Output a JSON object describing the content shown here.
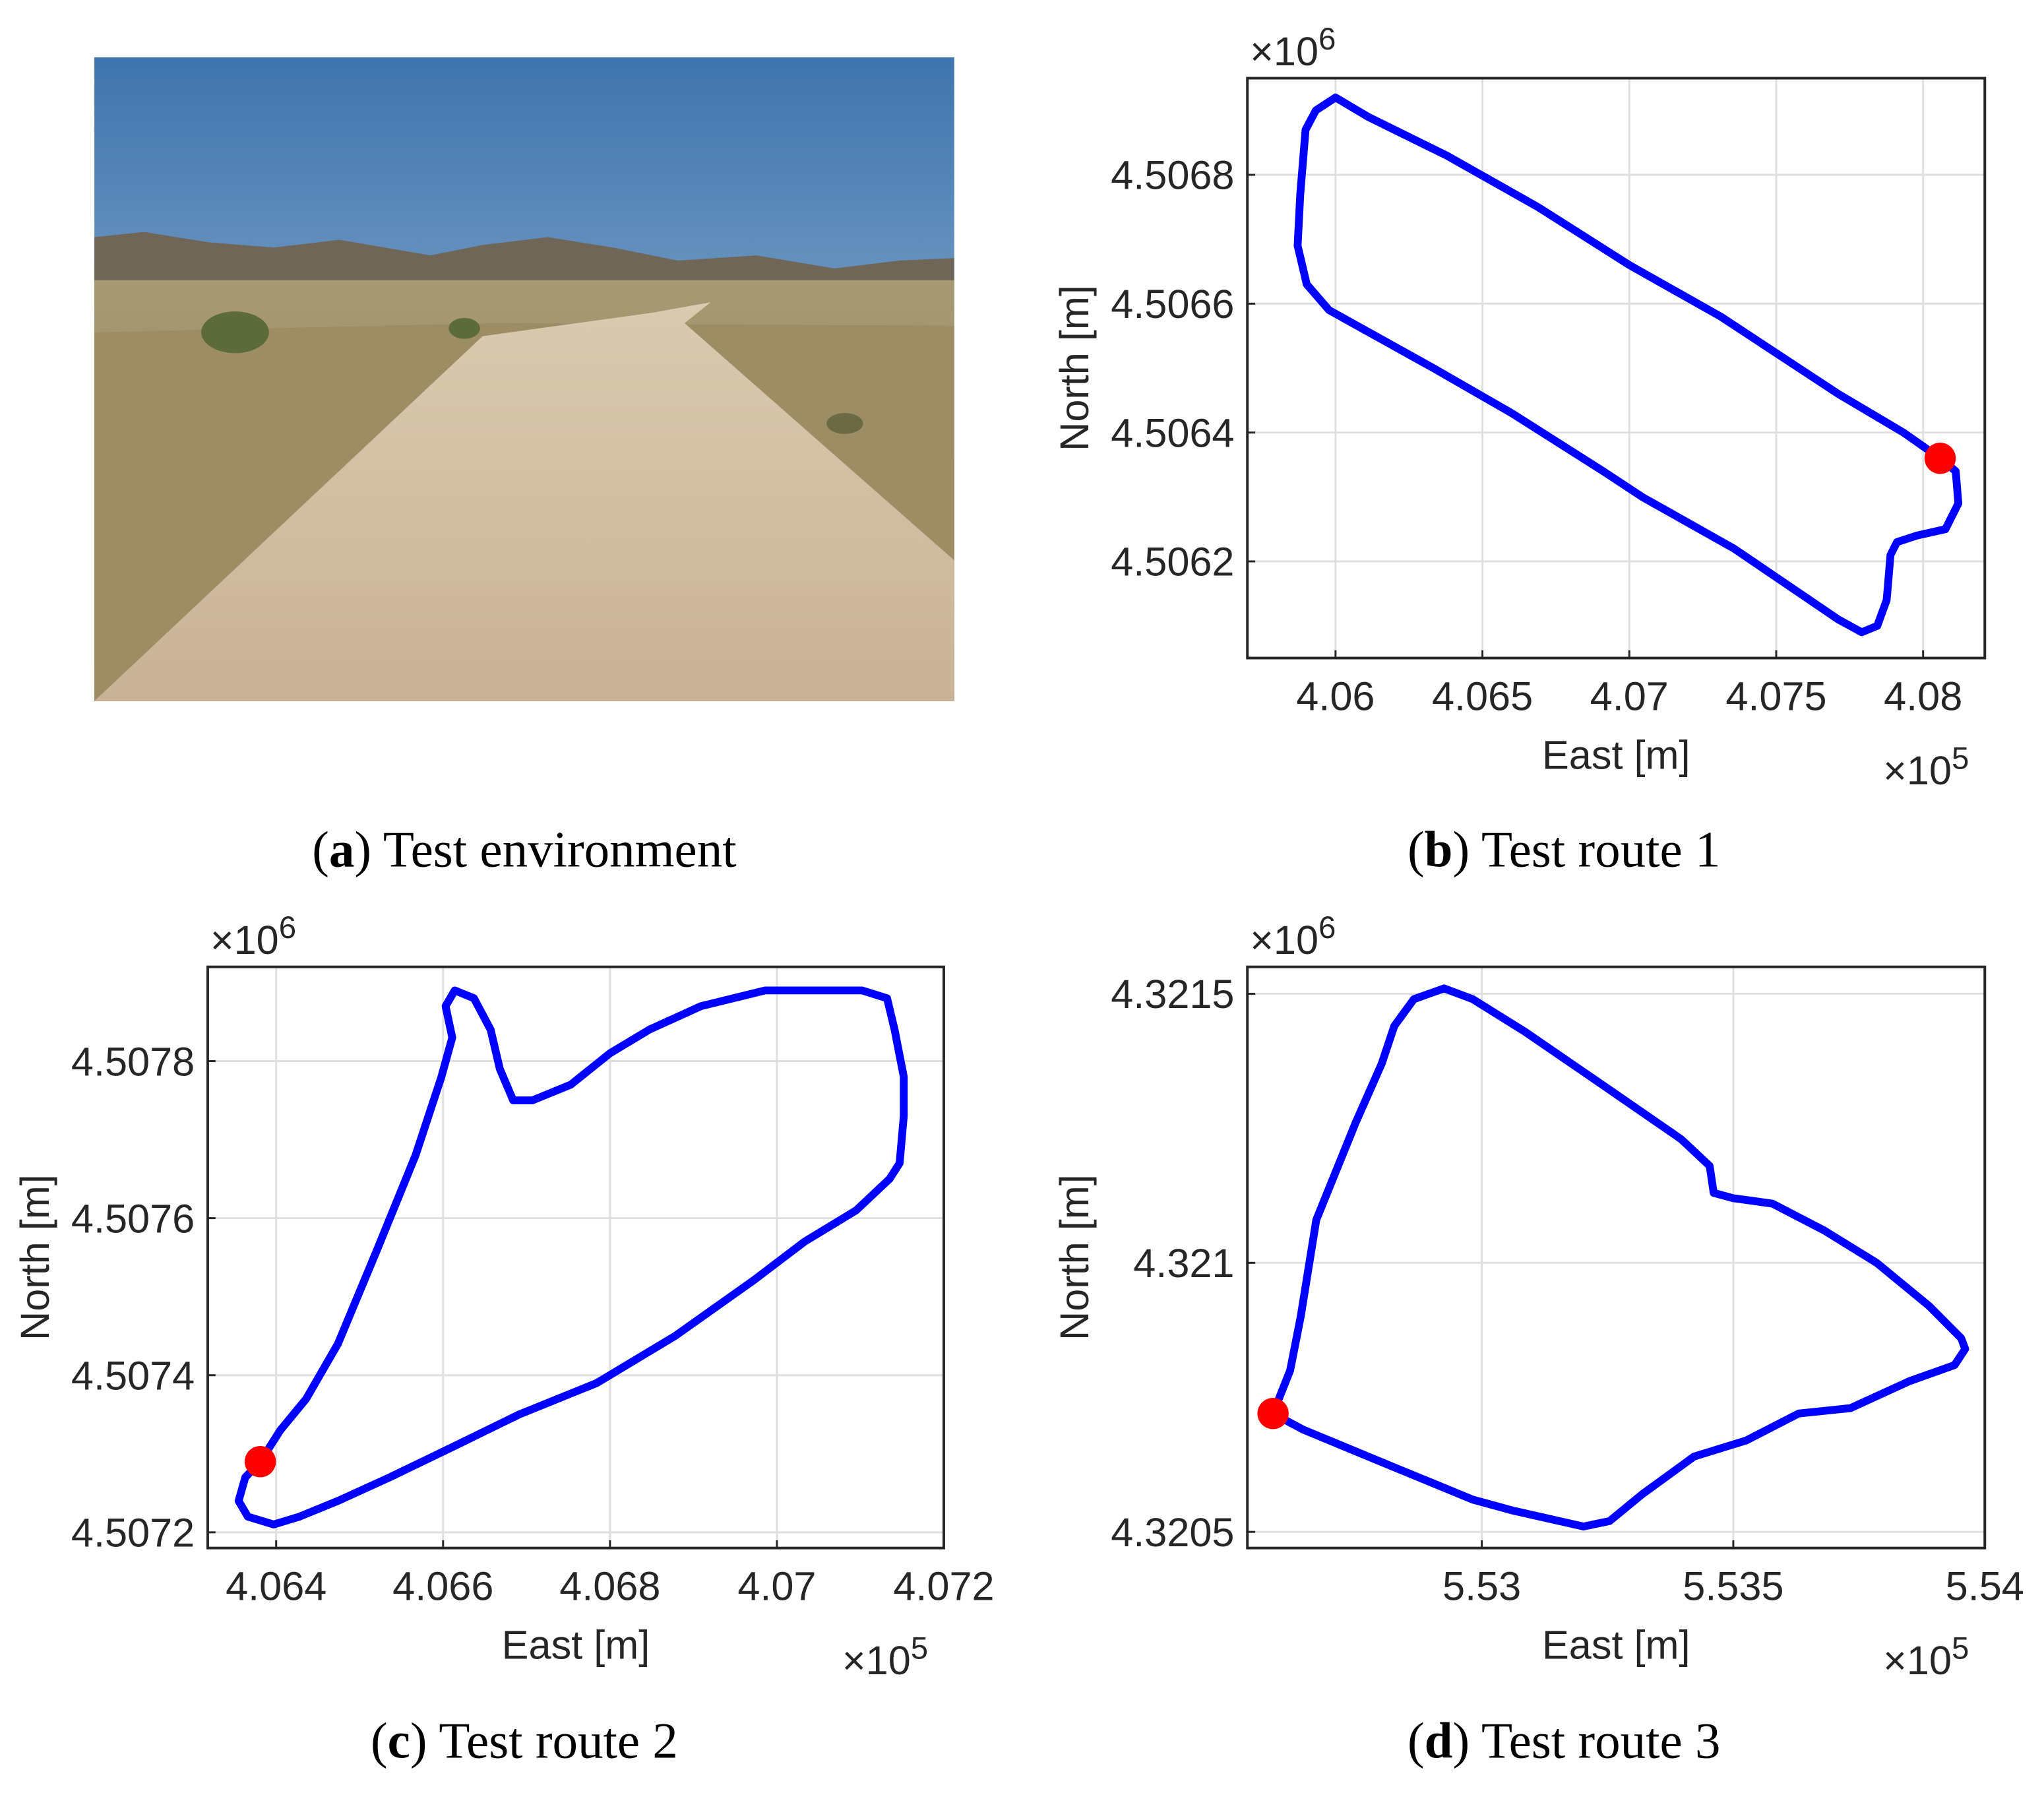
{
  "photo": {
    "caption": [
      "(",
      "a",
      ") Test environment"
    ]
  },
  "chart_data": [
    {
      "type": "line",
      "caption": [
        "(",
        "b",
        ") Test route 1"
      ],
      "xlabel": "East [m]",
      "ylabel": "North [m]",
      "x_multiplier": "×10",
      "x_multiplier_exponent": "5",
      "y_multiplier": "×10",
      "y_multiplier_exponent": "6",
      "xlim": [
        4.057,
        4.0821
      ],
      "ylim": [
        4.50605,
        4.50695
      ],
      "xticks": [
        4.06,
        4.065,
        4.07,
        4.075,
        4.08
      ],
      "yticks": [
        4.5062,
        4.5064,
        4.5066,
        4.5068
      ],
      "grid": true,
      "color": "#0000ff",
      "x": [
        4.08058,
        4.08111,
        4.0812,
        4.08076,
        4.07978,
        4.07911,
        4.07889,
        4.07876,
        4.07844,
        4.07791,
        4.07711,
        4.07356,
        4.07044,
        4.06911,
        4.066,
        4.06333,
        4.05978,
        4.05902,
        4.05871,
        4.0588,
        4.05898,
        4.05933,
        4.06,
        4.06111,
        4.06378,
        4.06689,
        4.07,
        4.07311,
        4.07711,
        4.07933,
        4.08058
      ],
      "values": [
        4.50636,
        4.50634,
        4.50629,
        4.50625,
        4.50624,
        4.50623,
        4.50621,
        4.50614,
        4.5061,
        4.50609,
        4.50611,
        4.50622,
        4.5063,
        4.50634,
        4.50643,
        4.5065,
        4.50659,
        4.50663,
        4.50669,
        4.50677,
        4.50687,
        4.5069,
        4.50692,
        4.50689,
        4.50683,
        4.50675,
        4.50666,
        4.50658,
        4.50646,
        4.5064,
        4.50636
      ],
      "start": {
        "x": 4.08058,
        "y": 4.50636,
        "color": "#ff0000"
      }
    },
    {
      "type": "line",
      "caption": [
        "(",
        "c",
        ") Test route 2"
      ],
      "xlabel": "East [m]",
      "ylabel": "North [m]",
      "x_multiplier": "×10",
      "x_multiplier_exponent": "5",
      "y_multiplier": "×10",
      "y_multiplier_exponent": "6",
      "xlim": [
        4.06318,
        4.072
      ],
      "ylim": [
        4.50718,
        4.50792
      ],
      "xticks": [
        4.064,
        4.066,
        4.068,
        4.07,
        4.072
      ],
      "yticks": [
        4.5072,
        4.5074,
        4.5076,
        4.5078
      ],
      "grid": true,
      "color": "#0000ff",
      "x": [
        4.06381,
        4.06363,
        4.06355,
        4.06366,
        4.06397,
        4.06428,
        4.06474,
        4.06536,
        4.06614,
        4.06691,
        4.06784,
        4.06878,
        4.06971,
        4.07033,
        4.07095,
        4.07135,
        4.07147,
        4.07152,
        4.07152,
        4.07141,
        4.07132,
        4.07102,
        4.07033,
        4.06986,
        4.06909,
        4.06847,
        4.068,
        4.06753,
        4.06707,
        4.06684,
        4.06668,
        4.06657,
        4.06637,
        4.06614,
        4.06603,
        4.06611,
        4.06598,
        4.06567,
        4.06521,
        4.06474,
        4.06436,
        4.06405,
        4.06381
      ],
      "values": [
        4.50729,
        4.50727,
        4.50724,
        4.50722,
        4.50721,
        4.50722,
        4.50724,
        4.50727,
        4.50731,
        4.50735,
        4.50739,
        4.50745,
        4.50752,
        4.50757,
        4.50761,
        4.50765,
        4.50767,
        4.50773,
        4.50778,
        4.50784,
        4.50788,
        4.50789,
        4.50789,
        4.50789,
        4.50787,
        4.50784,
        4.50781,
        4.50777,
        4.50775,
        4.50775,
        4.50779,
        4.50784,
        4.50788,
        4.50789,
        4.50787,
        4.50783,
        4.50778,
        4.50768,
        4.50756,
        4.50744,
        4.50737,
        4.50733,
        4.50729
      ],
      "start": {
        "x": 4.06381,
        "y": 4.50729,
        "color": "#ff0000"
      }
    },
    {
      "type": "line",
      "caption": [
        "(",
        "d",
        ") Test route 3"
      ],
      "xlabel": "East [m]",
      "ylabel": "North [m]",
      "x_multiplier": "×10",
      "x_multiplier_exponent": "5",
      "y_multiplier": "×10",
      "y_multiplier_exponent": "6",
      "xlim": [
        5.52534,
        5.54
      ],
      "ylim": [
        4.32047,
        4.32155
      ],
      "xticks": [
        5.53,
        5.535,
        5.54
      ],
      "yticks": [
        4.3205,
        4.321,
        4.3215
      ],
      "grid": true,
      "color": "#0000ff",
      "x": [
        5.52585,
        5.52645,
        5.52826,
        5.52982,
        5.5306,
        5.53202,
        5.53254,
        5.53319,
        5.53422,
        5.53526,
        5.5363,
        5.53733,
        5.5385,
        5.5394,
        5.53961,
        5.53953,
        5.53889,
        5.53785,
        5.53681,
        5.53578,
        5.535,
        5.53461,
        5.53453,
        5.53396,
        5.53241,
        5.53085,
        5.52982,
        5.52925,
        5.52865,
        5.52826,
        5.52801,
        5.52749,
        5.52671,
        5.5264,
        5.52619,
        5.52585
      ],
      "values": [
        4.32072,
        4.32069,
        4.32062,
        4.32056,
        4.32054,
        4.32051,
        4.32052,
        4.32057,
        4.32064,
        4.32067,
        4.32072,
        4.32073,
        4.32078,
        4.32081,
        4.32084,
        4.32086,
        4.32092,
        4.321,
        4.32106,
        4.32111,
        4.32112,
        4.32113,
        4.32118,
        4.32123,
        4.32133,
        4.32143,
        4.32149,
        4.32151,
        4.32149,
        4.32144,
        4.32137,
        4.32126,
        4.32108,
        4.3209,
        4.3208,
        4.32072
      ],
      "start": {
        "x": 5.52585,
        "y": 4.32072,
        "color": "#ff0000"
      }
    }
  ]
}
